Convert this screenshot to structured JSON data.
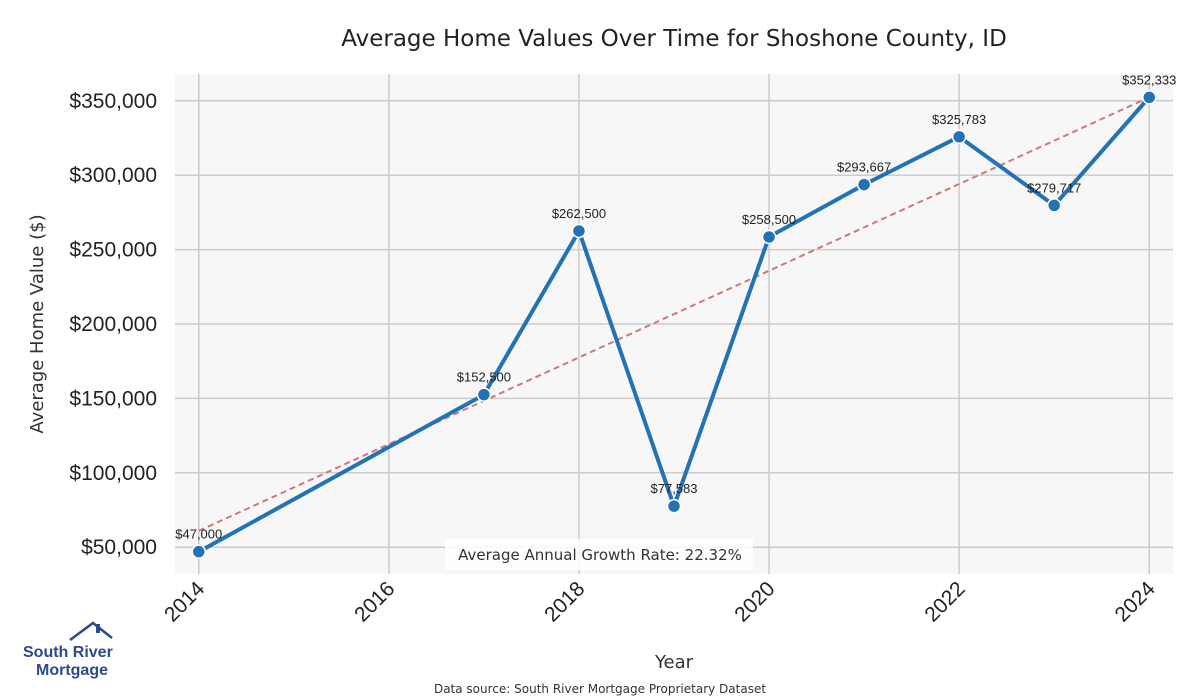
{
  "chart_data": {
    "type": "line",
    "title": "Average Home Values Over Time for Shoshone County, ID",
    "xlabel": "Year",
    "ylabel": "Average Home Value ($)",
    "x": [
      2014,
      2017,
      2018,
      2019,
      2020,
      2021,
      2022,
      2023,
      2024
    ],
    "series": [
      {
        "values": [
          47000,
          152500,
          262500,
          77583,
          258500,
          293667,
          325783,
          279717,
          352333
        ],
        "data_labels": [
          "$47,000",
          "$152,500",
          "$262,500",
          "$77,583",
          "$258,500",
          "$293,667",
          "$325,783",
          "$279,717",
          "$352,333"
        ],
        "color": "#2272b4"
      }
    ],
    "trendline": {
      "style": "dashed",
      "color": "#d07878",
      "from": [
        2014,
        61000
      ],
      "to": [
        2024,
        352333
      ]
    },
    "x_ticks": [
      "2014",
      "2016",
      "2018",
      "2020",
      "2022",
      "2024"
    ],
    "y_ticks": [
      "$50,000",
      "$100,000",
      "$150,000",
      "$200,000",
      "$250,000",
      "$300,000",
      "$350,000"
    ],
    "xlim": [
      2013.75,
      2024.25
    ],
    "ylim": [
      32000,
      368000
    ],
    "grid": true,
    "plot_background": "#f7f7f7",
    "annotation": "Average Annual Growth Rate: 22.32%"
  },
  "footer": {
    "source": "Data source: South River Mortgage Proprietary Dataset"
  },
  "logo": {
    "line1": "South River",
    "line2": "Mortgage",
    "color": "#2e4a8a"
  }
}
